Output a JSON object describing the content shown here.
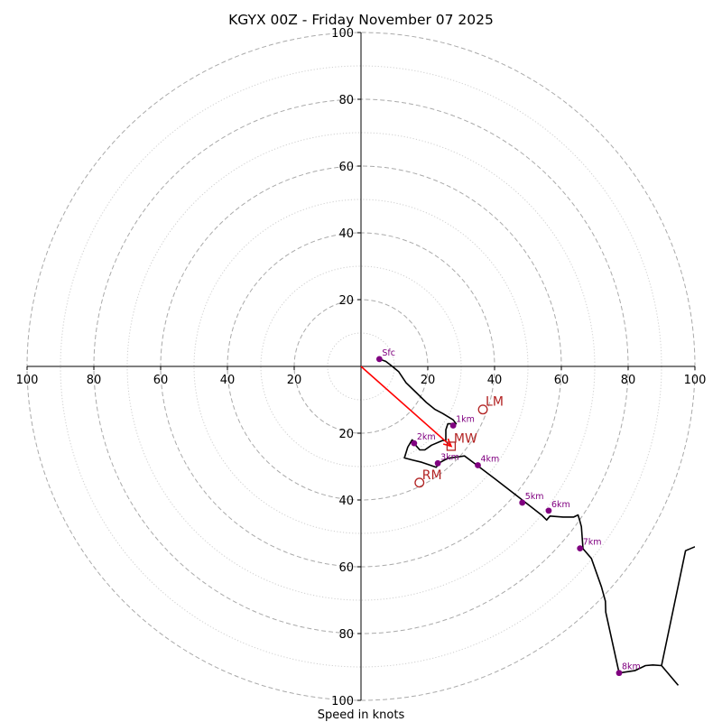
{
  "chart_data": {
    "type": "hodograph",
    "title": "KGYX 00Z - Friday November 07 2025",
    "xlabel": "Speed in knots",
    "ylabel": "",
    "xlim": [
      -100,
      100
    ],
    "ylim": [
      -100,
      100
    ],
    "ring_dashed_values": [
      20,
      40,
      60,
      80,
      100
    ],
    "ring_dotted_values": [
      10,
      30,
      50,
      70,
      90
    ],
    "x_tick_labels": [
      "100",
      "80",
      "60",
      "40",
      "20",
      "20",
      "40",
      "60",
      "80",
      "100"
    ],
    "y_tick_labels": [
      "100",
      "80",
      "60",
      "40",
      "20",
      "20",
      "40",
      "60",
      "80",
      "100"
    ],
    "trace": [
      [
        5.5,
        2.2
      ],
      [
        7.4,
        1.5
      ],
      [
        9.0,
        0.3
      ],
      [
        11.3,
        -1.6
      ],
      [
        13.5,
        -4.9
      ],
      [
        16.4,
        -7.7
      ],
      [
        19.6,
        -10.8
      ],
      [
        22.2,
        -12.9
      ],
      [
        24.5,
        -14.1
      ],
      [
        27.6,
        -16.0
      ],
      [
        28.5,
        -17.2
      ],
      [
        26.0,
        -17.2
      ],
      [
        25.4,
        -19.0
      ],
      [
        25.4,
        -22.2
      ],
      [
        24.4,
        -22.2
      ],
      [
        21.1,
        -23.6
      ],
      [
        19.1,
        -25.0
      ],
      [
        17.6,
        -25.0
      ],
      [
        16.1,
        -23.3
      ],
      [
        15.9,
        -22.5
      ],
      [
        15.3,
        -22.0
      ],
      [
        14.0,
        -24.2
      ],
      [
        13.0,
        -27.4
      ],
      [
        15.3,
        -28.0
      ],
      [
        18.2,
        -28.7
      ],
      [
        20.2,
        -29.4
      ],
      [
        22.5,
        -30.2
      ],
      [
        23.6,
        -28.8
      ],
      [
        26.0,
        -27.5
      ],
      [
        31.0,
        -26.8
      ],
      [
        34.6,
        -29.5
      ],
      [
        40.0,
        -33.6
      ],
      [
        47.0,
        -39.0
      ],
      [
        54.2,
        -44.6
      ],
      [
        55.6,
        -46.0
      ],
      [
        56.6,
        -44.8
      ],
      [
        60.5,
        -45.1
      ],
      [
        63.7,
        -45.1
      ],
      [
        65.0,
        -44.5
      ],
      [
        65.5,
        -46.2
      ],
      [
        66.0,
        -48.0
      ],
      [
        66.5,
        -54.6
      ],
      [
        69.0,
        -57.5
      ],
      [
        72.0,
        -66.0
      ],
      [
        73.2,
        -70.3
      ],
      [
        73.3,
        -73.6
      ],
      [
        77.3,
        -91.8
      ],
      [
        82.0,
        -91.1
      ],
      [
        85.2,
        -89.6
      ],
      [
        87.4,
        -89.4
      ],
      [
        90.0,
        -89.6
      ],
      [
        95.0,
        -95.5
      ]
    ],
    "trace_upper": [
      [
        90.0,
        -89.6
      ],
      [
        97.2,
        -55.2
      ],
      [
        100.0,
        -54.0
      ]
    ],
    "height_points": [
      {
        "label": "Sfc",
        "u": 5.5,
        "v": 2.2
      },
      {
        "label": "1km",
        "u": 27.6,
        "v": -17.7
      },
      {
        "label": "2km",
        "u": 15.9,
        "v": -23.0
      },
      {
        "label": "3km",
        "u": 23.0,
        "v": -29.0
      },
      {
        "label": "4km",
        "u": 35.0,
        "v": -29.6
      },
      {
        "label": "5km",
        "u": 48.3,
        "v": -40.8
      },
      {
        "label": "6km",
        "u": 56.2,
        "v": -43.2
      },
      {
        "label": "7km",
        "u": 65.6,
        "v": -54.5
      },
      {
        "label": "8km",
        "u": 77.3,
        "v": -91.8
      }
    ],
    "storm_motions": [
      {
        "label": "LM",
        "u": 36.5,
        "v": -12.9,
        "marker": "circle"
      },
      {
        "label": "MW",
        "u": 27.0,
        "v": -23.9,
        "marker": "square"
      },
      {
        "label": "RM",
        "u": 17.5,
        "v": -34.8,
        "marker": "circle"
      }
    ],
    "mean_wind_vector": {
      "from": [
        0,
        0
      ],
      "to": [
        27.0,
        -23.9
      ]
    },
    "colors": {
      "trace": "#000000",
      "height_point": "#800080",
      "storm_motion": "#b22222",
      "vector": "#ff0000",
      "rings": "#aaaaaa"
    }
  }
}
